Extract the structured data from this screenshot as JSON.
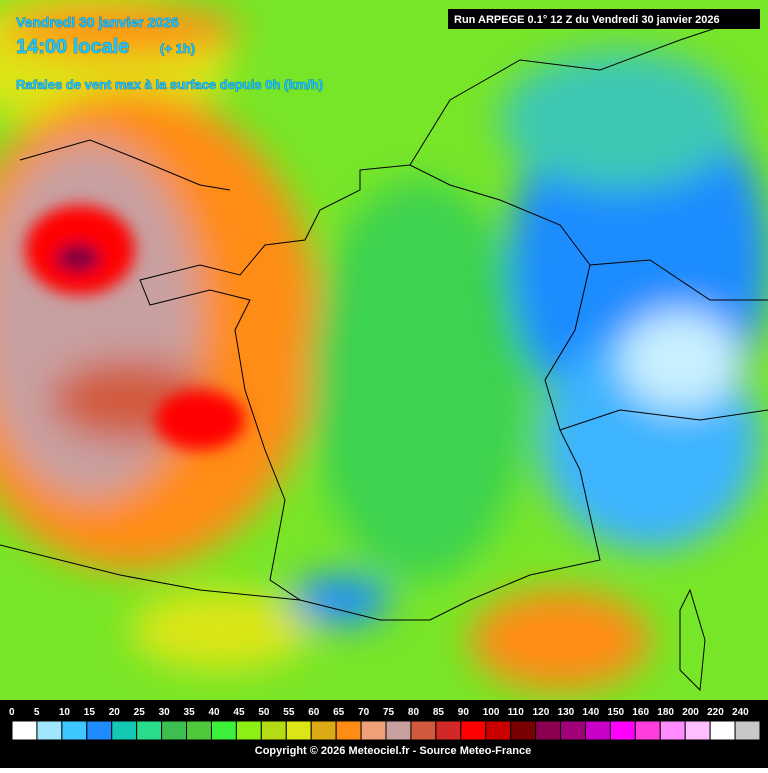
{
  "header": {
    "date": "Vendredi 30 janvier 2026",
    "time": "14:00 locale",
    "offset": "(+ 1h)",
    "parameter": "Rafales de vent max à la surface depuis 0h (km/h)",
    "run": "Run ARPEGE 0.1° 12 Z du Vendredi 30 janvier 2026"
  },
  "legend": {
    "items": [
      {
        "label": "0",
        "color": "#ffffff"
      },
      {
        "label": "5",
        "color": "#a0e6ff"
      },
      {
        "label": "10",
        "color": "#3cc8ff"
      },
      {
        "label": "15",
        "color": "#1e8cff"
      },
      {
        "label": "20",
        "color": "#14c8b4"
      },
      {
        "label": "25",
        "color": "#28dc8c"
      },
      {
        "label": "30",
        "color": "#3cbe50"
      },
      {
        "label": "35",
        "color": "#50c83c"
      },
      {
        "label": "40",
        "color": "#3cf03c"
      },
      {
        "label": "45",
        "color": "#8cf014"
      },
      {
        "label": "50",
        "color": "#b4dc14"
      },
      {
        "label": "55",
        "color": "#dce614"
      },
      {
        "label": "60",
        "color": "#dcaa14"
      },
      {
        "label": "65",
        "color": "#ff8c14"
      },
      {
        "label": "70",
        "color": "#f0a078"
      },
      {
        "label": "75",
        "color": "#c8a0a0"
      },
      {
        "label": "80",
        "color": "#d25a3c"
      },
      {
        "label": "85",
        "color": "#d22828"
      },
      {
        "label": "90",
        "color": "#ff0000"
      },
      {
        "label": "100",
        "color": "#c80000"
      },
      {
        "label": "110",
        "color": "#780000"
      },
      {
        "label": "120",
        "color": "#8c0050"
      },
      {
        "label": "130",
        "color": "#a00078"
      },
      {
        "label": "140",
        "color": "#c800c8"
      },
      {
        "label": "150",
        "color": "#ff00ff"
      },
      {
        "label": "160",
        "color": "#ff3cdc"
      },
      {
        "label": "180",
        "color": "#ff8cff"
      },
      {
        "label": "200",
        "color": "#ffbeff"
      },
      {
        "label": "220",
        "color": "#ffffff"
      },
      {
        "label": "240",
        "color": "#c8c8c8"
      }
    ]
  },
  "copyright": "Copyright © 2026 Meteociel.fr - Source Meteo-France"
}
